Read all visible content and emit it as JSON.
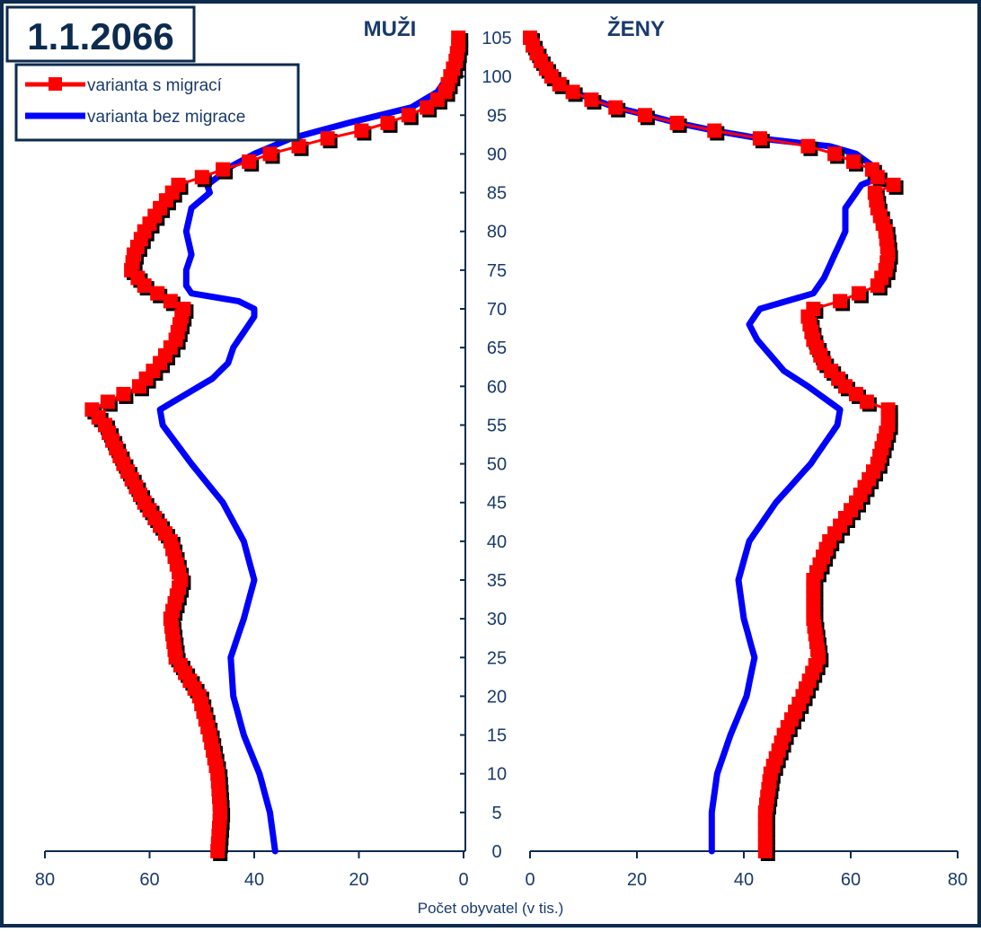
{
  "chart_data": {
    "type": "line",
    "title": "1.1.2066",
    "left_panel_label": "MUŽI",
    "right_panel_label": "ŽENY",
    "xlabel": "Počet obyvatel (v tis.)",
    "ylabel": "",
    "xlim": [
      0,
      80
    ],
    "ylim": [
      0,
      105
    ],
    "x_ticks_left": [
      "80",
      "60",
      "40",
      "20",
      "0"
    ],
    "x_ticks_right": [
      "0",
      "20",
      "40",
      "60",
      "80"
    ],
    "y_ticks": [
      "0",
      "5",
      "10",
      "15",
      "20",
      "25",
      "30",
      "35",
      "40",
      "45",
      "50",
      "55",
      "60",
      "65",
      "70",
      "75",
      "80",
      "85",
      "90",
      "95",
      "100",
      "105"
    ],
    "legend_position": "top-left",
    "colors": {
      "frame": "#0d2b4f",
      "axis": "#0d2b4f",
      "text": "#1a3a6c",
      "migration": "#ff0000",
      "no_migration": "#0000ff",
      "shadow": "#000000"
    },
    "series": [
      {
        "name": "varianta s migrací",
        "color": "#ff0000",
        "marker": "square",
        "men": [
          [
            0,
            47
          ],
          [
            5,
            46.5
          ],
          [
            10,
            47
          ],
          [
            15,
            48.5
          ],
          [
            20,
            50.5
          ],
          [
            25,
            55
          ],
          [
            30,
            56
          ],
          [
            35,
            54
          ],
          [
            40,
            56
          ],
          [
            45,
            61
          ],
          [
            50,
            65
          ],
          [
            55,
            68.5
          ],
          [
            57,
            71
          ],
          [
            58,
            68
          ],
          [
            60,
            62
          ],
          [
            63,
            58
          ],
          [
            66,
            55
          ],
          [
            70,
            53.5
          ],
          [
            71,
            56
          ],
          [
            73,
            61
          ],
          [
            75,
            63.5
          ],
          [
            77,
            63
          ],
          [
            80,
            61
          ],
          [
            83,
            58
          ],
          [
            86,
            54.5
          ],
          [
            87,
            50
          ],
          [
            88,
            46
          ],
          [
            89,
            41
          ],
          [
            90,
            37
          ],
          [
            91,
            31.5
          ],
          [
            92,
            26
          ],
          [
            93,
            19.5
          ],
          [
            94,
            14.5
          ],
          [
            95,
            10.5
          ],
          [
            96,
            7
          ],
          [
            97,
            5
          ],
          [
            98,
            3.5
          ],
          [
            100,
            2.5
          ],
          [
            102,
            1.5
          ],
          [
            104,
            1
          ],
          [
            105,
            1
          ]
        ],
        "women": [
          [
            0,
            44
          ],
          [
            5,
            44
          ],
          [
            10,
            45
          ],
          [
            15,
            47.5
          ],
          [
            20,
            51
          ],
          [
            25,
            54
          ],
          [
            30,
            53
          ],
          [
            35,
            53
          ],
          [
            40,
            56
          ],
          [
            45,
            61
          ],
          [
            50,
            65
          ],
          [
            55,
            67
          ],
          [
            57,
            67
          ],
          [
            58,
            63
          ],
          [
            60,
            59
          ],
          [
            63,
            55
          ],
          [
            66,
            53
          ],
          [
            69,
            52
          ],
          [
            70,
            53
          ],
          [
            71,
            58
          ],
          [
            73,
            65
          ],
          [
            75,
            66.5
          ],
          [
            77,
            67
          ],
          [
            80,
            66.5
          ],
          [
            83,
            65
          ],
          [
            85,
            64.5
          ],
          [
            86,
            68
          ],
          [
            87,
            65
          ],
          [
            88,
            64
          ],
          [
            89,
            60.5
          ],
          [
            90,
            57
          ],
          [
            91,
            52
          ],
          [
            92,
            43
          ],
          [
            93,
            34.5
          ],
          [
            94,
            27.5
          ],
          [
            95,
            21.5
          ],
          [
            96,
            16
          ],
          [
            97,
            11.5
          ],
          [
            98,
            8
          ],
          [
            99,
            5.5
          ],
          [
            100,
            4
          ],
          [
            102,
            2
          ],
          [
            104,
            0.5
          ],
          [
            105,
            0
          ]
        ]
      },
      {
        "name": "varianta bez migrace",
        "color": "#0000ff",
        "marker": "none",
        "men": [
          [
            0,
            36
          ],
          [
            5,
            37
          ],
          [
            10,
            39
          ],
          [
            15,
            42
          ],
          [
            20,
            44
          ],
          [
            25,
            44.5
          ],
          [
            30,
            42
          ],
          [
            35,
            40
          ],
          [
            40,
            42
          ],
          [
            45,
            46
          ],
          [
            50,
            52
          ],
          [
            55,
            57.5
          ],
          [
            57,
            58
          ],
          [
            59,
            53
          ],
          [
            61,
            48
          ],
          [
            63,
            45
          ],
          [
            65,
            44
          ],
          [
            67,
            42
          ],
          [
            69,
            40
          ],
          [
            70,
            40
          ],
          [
            71,
            43
          ],
          [
            72,
            52
          ],
          [
            73,
            53
          ],
          [
            75,
            53
          ],
          [
            77,
            52
          ],
          [
            80,
            53
          ],
          [
            83,
            52
          ],
          [
            85,
            48.5
          ],
          [
            86,
            49
          ],
          [
            87,
            47
          ],
          [
            88,
            45.5
          ],
          [
            90,
            40
          ],
          [
            92,
            33
          ],
          [
            94,
            22
          ],
          [
            96,
            10
          ],
          [
            98,
            5
          ],
          [
            100,
            3
          ],
          [
            102,
            1.5
          ],
          [
            105,
            0.5
          ]
        ],
        "women": [
          [
            0,
            34
          ],
          [
            5,
            34
          ],
          [
            10,
            35
          ],
          [
            15,
            37.5
          ],
          [
            20,
            40.5
          ],
          [
            25,
            42
          ],
          [
            30,
            40
          ],
          [
            35,
            39
          ],
          [
            40,
            41
          ],
          [
            45,
            46
          ],
          [
            50,
            52.5
          ],
          [
            55,
            57.5
          ],
          [
            57,
            58
          ],
          [
            60,
            52
          ],
          [
            62,
            47.5
          ],
          [
            64,
            45
          ],
          [
            66,
            42.5
          ],
          [
            68,
            41
          ],
          [
            70,
            43
          ],
          [
            72,
            53
          ],
          [
            74,
            55
          ],
          [
            77,
            57
          ],
          [
            80,
            59
          ],
          [
            83,
            59
          ],
          [
            85,
            61
          ],
          [
            86,
            62
          ],
          [
            87,
            65.5
          ],
          [
            88,
            65
          ],
          [
            90,
            61
          ],
          [
            91,
            56
          ],
          [
            92,
            43
          ],
          [
            93,
            34.5
          ],
          [
            94,
            27.5
          ],
          [
            95,
            22
          ],
          [
            96,
            16
          ],
          [
            98,
            8
          ],
          [
            100,
            4
          ],
          [
            102,
            2
          ],
          [
            104,
            0.5
          ],
          [
            105,
            0
          ]
        ]
      }
    ]
  }
}
